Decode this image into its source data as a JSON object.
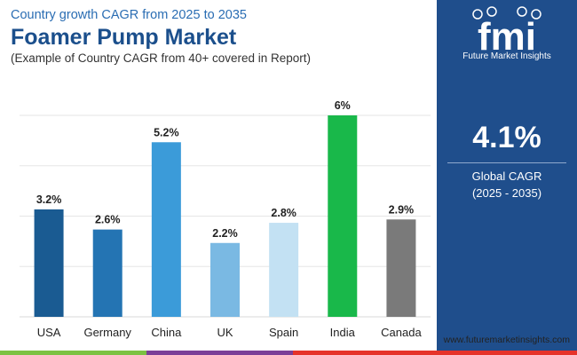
{
  "header": {
    "subtitle": "Country growth CAGR from 2025 to 2035",
    "title": "Foamer Pump Market",
    "note": "(Example of Country CAGR from 40+ covered in Report)"
  },
  "sidebar": {
    "logo_text": "fmi",
    "logo_caption": "Future Market Insights",
    "cagr_value": "4.1%",
    "cagr_label": "Global CAGR",
    "cagr_period": "(2025 - 2035)"
  },
  "footer": {
    "source": "www.futuremarketinsights.com"
  },
  "colors": {
    "sidebar": "#1f4e8c",
    "title": "#1b4f8c",
    "footer_segments": [
      "#7cc242",
      "#7b3f98",
      "#e6332a"
    ]
  },
  "chart_data": {
    "type": "bar",
    "title": "Foamer Pump Market",
    "xlabel": "",
    "ylabel": "",
    "ylim": [
      0,
      6
    ],
    "grid": true,
    "categories": [
      "USA",
      "Germany",
      "China",
      "UK",
      "Spain",
      "India",
      "Canada"
    ],
    "values": [
      3.2,
      2.6,
      5.2,
      2.2,
      2.8,
      6,
      2.9
    ],
    "labels": [
      "3.2%",
      "2.6%",
      "5.2%",
      "2.2%",
      "2.8%",
      "6%",
      "2.9%"
    ],
    "colors": [
      "#1a5b92",
      "#2474b3",
      "#3b9bd9",
      "#7ab9e3",
      "#c3e1f3",
      "#19b84a",
      "#7a7a7a"
    ]
  }
}
